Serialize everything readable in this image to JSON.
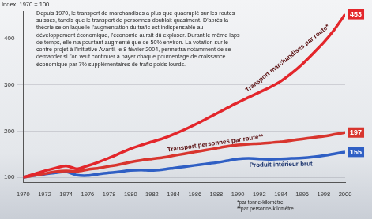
{
  "chart_data": {
    "type": "line",
    "title": "Depuis 1970, le transport de marchandises a plus que quadruplé sur les routes suisses, tandis que le transport de personnes doublait quasiment. D'après la théorie selon laquelle l'augmentation du trafic est indispensable au développement économique, l'économie aurait dû exploser. Durant le même laps de temps, elle n'a pourtant augmenté que de 50% environ. La votation sur le contre-projet à l'initiative Avanti, le 8 février 2004, permettra notamment de se demander si l'on veut continuer à payer chaque pourcentage de croissance économique par 7% supplémentaires de trafic poids lourds.",
    "ylabel": "Index, 1970 = 100",
    "x": [
      1970,
      1971,
      1972,
      1973,
      1974,
      1975,
      1976,
      1977,
      1978,
      1979,
      1980,
      1981,
      1982,
      1983,
      1984,
      1985,
      1986,
      1987,
      1988,
      1989,
      1990,
      1991,
      1992,
      1993,
      1994,
      1995,
      1996,
      1997,
      1998,
      1999,
      2000
    ],
    "xlim": [
      1970,
      2000
    ],
    "xticks": [
      1970,
      1972,
      1974,
      1976,
      1978,
      1980,
      1982,
      1984,
      1986,
      1988,
      1990,
      1992,
      1994,
      1996,
      1998,
      2000
    ],
    "ylim": [
      90,
      460
    ],
    "yticks": [
      100,
      200,
      300,
      400
    ],
    "grid": true,
    "series": [
      {
        "name": "Transport marchandises par route*",
        "color": "#e3262b",
        "values": [
          100,
          107,
          114,
          120,
          125,
          118,
          125,
          133,
          142,
          152,
          162,
          170,
          177,
          184,
          193,
          203,
          214,
          226,
          238,
          250,
          262,
          273,
          284,
          295,
          308,
          325,
          345,
          368,
          392,
          420,
          453
        ],
        "value_labels": [
          null,
          null,
          null,
          null,
          null,
          null,
          null,
          null,
          null,
          null,
          null,
          null,
          null,
          null,
          null,
          null,
          null,
          null,
          null,
          null,
          null,
          null,
          null,
          null,
          null,
          null,
          null,
          null,
          null,
          null,
          "453"
        ]
      },
      {
        "name": "Transport personnes par route**",
        "color": "#d8352e",
        "values": [
          100,
          104,
          108,
          112,
          114,
          113,
          117,
          120,
          124,
          128,
          133,
          137,
          140,
          143,
          147,
          151,
          155,
          159,
          163,
          167,
          170,
          172,
          173,
          175,
          177,
          180,
          183,
          186,
          189,
          193,
          197
        ],
        "value_labels": [
          null,
          null,
          null,
          null,
          null,
          null,
          null,
          null,
          null,
          null,
          null,
          null,
          null,
          null,
          null,
          null,
          null,
          null,
          null,
          null,
          null,
          null,
          null,
          null,
          null,
          null,
          null,
          null,
          null,
          null,
          "197"
        ]
      },
      {
        "name": "Produit intérieur brut",
        "color": "#2f5fc4",
        "values": [
          100,
          104,
          107,
          110,
          112,
          105,
          104,
          107,
          110,
          112,
          115,
          116,
          115,
          117,
          120,
          123,
          126,
          129,
          132,
          136,
          140,
          141,
          140,
          139,
          140,
          141,
          142,
          144,
          147,
          151,
          155
        ],
        "value_labels": [
          null,
          null,
          null,
          null,
          null,
          null,
          null,
          null,
          null,
          null,
          null,
          null,
          null,
          null,
          null,
          null,
          null,
          null,
          null,
          null,
          null,
          null,
          null,
          null,
          null,
          null,
          null,
          null,
          null,
          null,
          "155"
        ]
      }
    ],
    "annotations": [
      "*par tonne-kilomètre",
      "**par personne-kilomètre"
    ]
  }
}
